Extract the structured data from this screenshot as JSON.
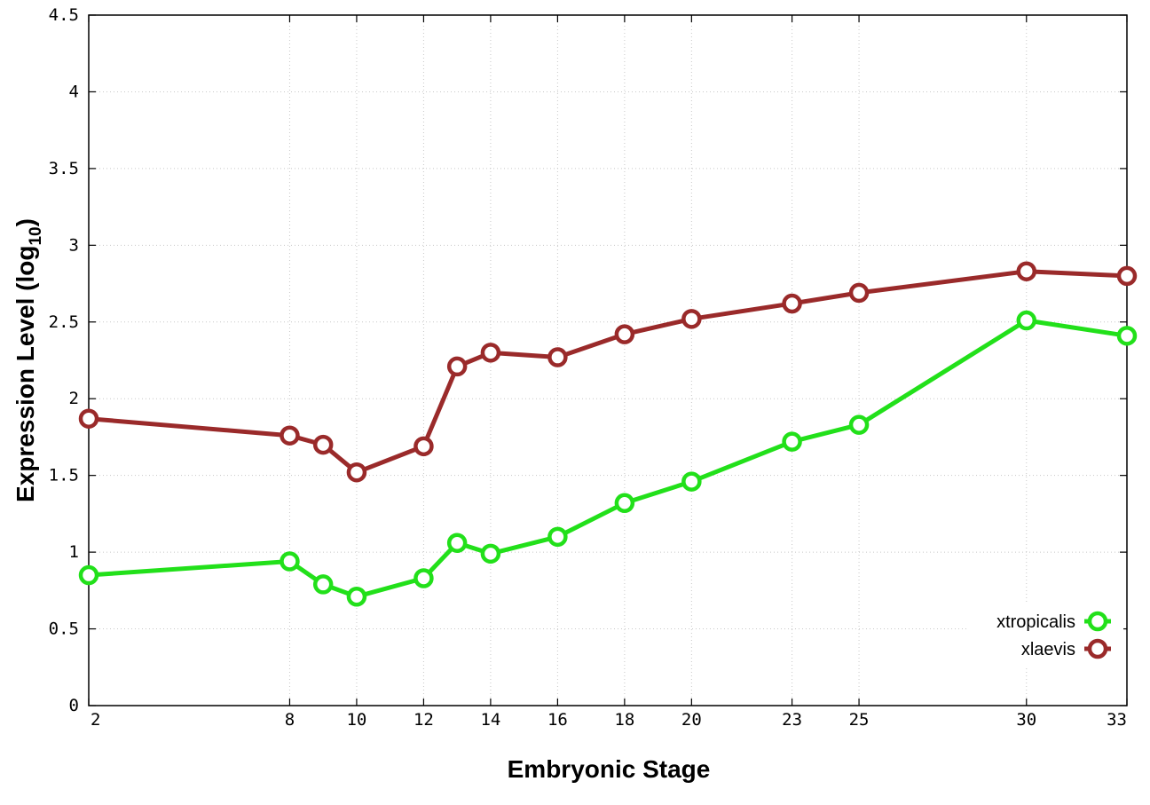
{
  "chart_data": {
    "type": "line",
    "xlabel": "Embryonic Stage",
    "ylabel_main": "Expression Level (log",
    "ylabel_sub": "10",
    "ylabel_close": ")",
    "x_ticks": [
      "2",
      "8",
      "10",
      "12",
      "14",
      "16",
      "18",
      "20",
      "23",
      "25",
      "30",
      "33"
    ],
    "x_tick_positions": [
      2,
      8,
      10,
      12,
      14,
      16,
      18,
      20,
      23,
      25,
      30,
      33
    ],
    "y_ticks": [
      "0",
      "0.5",
      "1",
      "1.5",
      "2",
      "2.5",
      "3",
      "3.5",
      "4",
      "4.5"
    ],
    "ylim": [
      0,
      4.5
    ],
    "xlim": [
      2,
      33
    ],
    "grid": true,
    "legend_position": "bottom-right",
    "x": [
      2,
      8,
      9,
      10,
      12,
      13,
      14,
      16,
      18,
      20,
      23,
      25,
      30,
      33
    ],
    "series": [
      {
        "name": "xtropicalis",
        "color": "#22e01a",
        "values": [
          0.85,
          0.94,
          0.79,
          0.71,
          0.83,
          1.06,
          0.99,
          1.1,
          1.32,
          1.46,
          1.72,
          1.83,
          2.51,
          2.41
        ]
      },
      {
        "name": "xlaevis",
        "color": "#9a2a2a",
        "values": [
          1.87,
          1.76,
          1.7,
          1.52,
          1.69,
          2.21,
          2.3,
          2.27,
          2.42,
          2.52,
          2.62,
          2.69,
          2.83,
          2.8
        ]
      }
    ]
  }
}
